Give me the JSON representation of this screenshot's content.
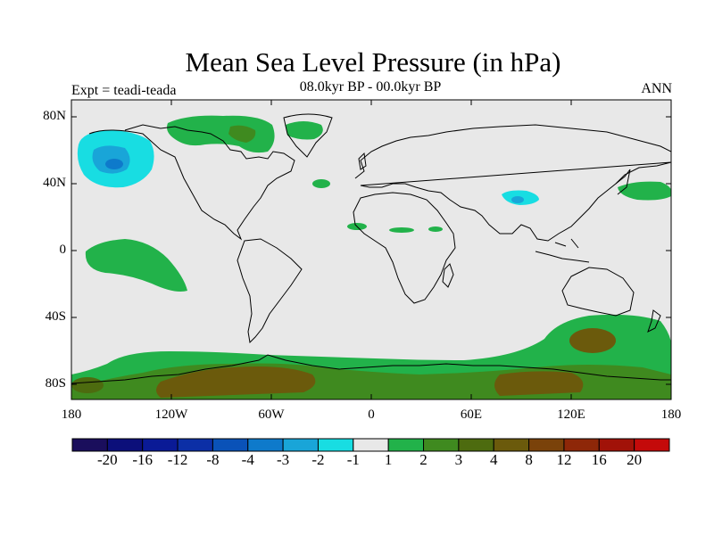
{
  "title": "Mean Sea Level Pressure (in hPa)",
  "experiment": "Expt = teadi-teada",
  "period": "08.0kyr BP - 00.0kyr BP",
  "season": "ANN",
  "lat_labels": [
    "80N",
    "40N",
    "0",
    "40S",
    "80S"
  ],
  "lon_labels": [
    "180",
    "120W",
    "60W",
    "0",
    "60E",
    "120E",
    "180"
  ],
  "colorbar": {
    "colors": [
      "#1a0e5c",
      "#0c0f7a",
      "#0a1a96",
      "#0c2fa6",
      "#0a52b8",
      "#0e7acb",
      "#19a5d8",
      "#18dde2",
      "#e8e8e8",
      "#22b24a",
      "#3f8a1f",
      "#4d6b0f",
      "#6b5a0c",
      "#7a420a",
      "#8e2708",
      "#a11208",
      "#c40a0a"
    ],
    "labels": [
      "-20",
      "-16",
      "-12",
      "-8",
      "-4",
      "-3",
      "-2",
      "-1",
      "1",
      "2",
      "3",
      "4",
      "8",
      "12",
      "16",
      "20"
    ]
  }
}
